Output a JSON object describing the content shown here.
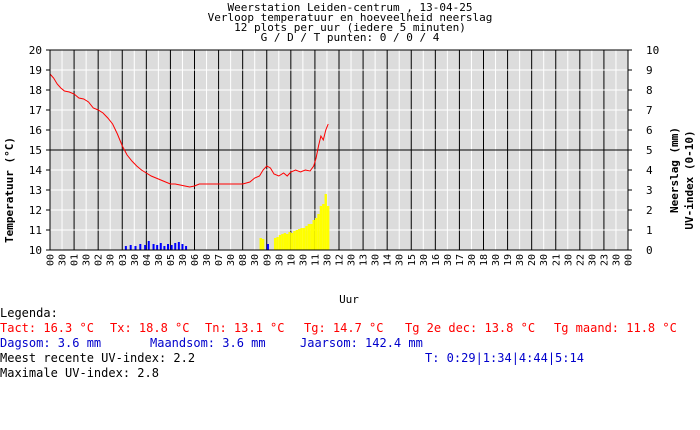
{
  "chart_data": {
    "type": "line",
    "title_lines": [
      "Weerstation Leiden-centrum , 13-04-25",
      "Verloop temperatuur en hoeveelheid neerslag",
      "12 plots per uur (iedere 5 minuten)",
      "G / D / T punten: 0 / 0 / 4"
    ],
    "xlabel": "Uur",
    "ylabel_left": "Temperatuur (°C)",
    "ylabel_right_1": "Neerslag (mm)",
    "ylabel_right_2": "UV-index (0-10)",
    "xlim": [
      0,
      24
    ],
    "ylim_left": [
      10,
      20
    ],
    "ylim_right": [
      0,
      10
    ],
    "left_ticks": [
      "10",
      "11",
      "12",
      "13",
      "14",
      "15",
      "16",
      "17",
      "18",
      "19",
      "20"
    ],
    "right_ticks": [
      "0",
      "1",
      "2",
      "3",
      "4",
      "5",
      "6",
      "7",
      "8",
      "9",
      "10"
    ],
    "hour_ticks": [
      "00",
      "01",
      "02",
      "03",
      "04",
      "05",
      "06",
      "07",
      "08",
      "09",
      "10",
      "11",
      "12",
      "13",
      "14",
      "15",
      "16",
      "17",
      "18",
      "19",
      "20",
      "21",
      "22",
      "23",
      "00"
    ],
    "half_hour_tick": "30",
    "grid": true,
    "colors": {
      "temperature": "#ff0000",
      "precipitation": "#0000ff",
      "uv": "#ffff00",
      "background": "#dcdcdc",
      "grid": "#000000"
    },
    "series": [
      {
        "name": "Temperatuur",
        "color": "#ff0000",
        "points": [
          [
            0.0,
            18.8
          ],
          [
            0.15,
            18.6
          ],
          [
            0.3,
            18.3
          ],
          [
            0.45,
            18.1
          ],
          [
            0.6,
            17.95
          ],
          [
            0.8,
            17.9
          ],
          [
            1.0,
            17.8
          ],
          [
            1.2,
            17.6
          ],
          [
            1.4,
            17.55
          ],
          [
            1.6,
            17.4
          ],
          [
            1.8,
            17.1
          ],
          [
            2.0,
            17.0
          ],
          [
            2.2,
            16.85
          ],
          [
            2.4,
            16.6
          ],
          [
            2.6,
            16.3
          ],
          [
            2.8,
            15.8
          ],
          [
            3.0,
            15.2
          ],
          [
            3.2,
            14.75
          ],
          [
            3.4,
            14.45
          ],
          [
            3.6,
            14.2
          ],
          [
            3.8,
            14.0
          ],
          [
            4.0,
            13.85
          ],
          [
            4.2,
            13.7
          ],
          [
            4.4,
            13.6
          ],
          [
            4.6,
            13.5
          ],
          [
            4.8,
            13.4
          ],
          [
            5.0,
            13.3
          ],
          [
            5.2,
            13.3
          ],
          [
            5.4,
            13.25
          ],
          [
            5.6,
            13.2
          ],
          [
            5.8,
            13.15
          ],
          [
            6.0,
            13.2
          ],
          [
            6.2,
            13.3
          ],
          [
            6.5,
            13.3
          ],
          [
            7.0,
            13.3
          ],
          [
            7.5,
            13.3
          ],
          [
            8.0,
            13.3
          ],
          [
            8.3,
            13.4
          ],
          [
            8.5,
            13.6
          ],
          [
            8.7,
            13.7
          ],
          [
            8.85,
            14.0
          ],
          [
            9.0,
            14.2
          ],
          [
            9.15,
            14.1
          ],
          [
            9.3,
            13.8
          ],
          [
            9.5,
            13.7
          ],
          [
            9.7,
            13.85
          ],
          [
            9.85,
            13.7
          ],
          [
            10.0,
            13.9
          ],
          [
            10.2,
            14.0
          ],
          [
            10.4,
            13.9
          ],
          [
            10.6,
            14.0
          ],
          [
            10.8,
            13.95
          ],
          [
            10.95,
            14.2
          ],
          [
            11.05,
            14.6
          ],
          [
            11.15,
            15.2
          ],
          [
            11.25,
            15.7
          ],
          [
            11.35,
            15.5
          ],
          [
            11.45,
            16.0
          ],
          [
            11.55,
            16.3
          ]
        ]
      },
      {
        "name": "Neerslag",
        "color": "#0000ff",
        "bars": [
          [
            3.15,
            0.2
          ],
          [
            3.35,
            0.25
          ],
          [
            3.55,
            0.2
          ],
          [
            3.75,
            0.3
          ],
          [
            3.95,
            0.25
          ],
          [
            4.1,
            0.45
          ],
          [
            4.3,
            0.3
          ],
          [
            4.45,
            0.25
          ],
          [
            4.6,
            0.35
          ],
          [
            4.75,
            0.2
          ],
          [
            4.9,
            0.3
          ],
          [
            5.05,
            0.25
          ],
          [
            5.2,
            0.35
          ],
          [
            5.35,
            0.4
          ],
          [
            5.5,
            0.3
          ],
          [
            5.65,
            0.2
          ],
          [
            9.05,
            0.3
          ]
        ]
      },
      {
        "name": "UV-index",
        "color": "#ffff00",
        "bars": [
          [
            8.75,
            0.6
          ],
          [
            8.85,
            0.55
          ],
          [
            9.35,
            0.6
          ],
          [
            9.45,
            0.65
          ],
          [
            9.55,
            0.75
          ],
          [
            9.65,
            0.8
          ],
          [
            9.75,
            0.85
          ],
          [
            9.85,
            0.8
          ],
          [
            9.95,
            0.9
          ],
          [
            10.05,
            0.85
          ],
          [
            10.15,
            0.95
          ],
          [
            10.25,
            1.0
          ],
          [
            10.35,
            1.05
          ],
          [
            10.45,
            1.1
          ],
          [
            10.55,
            1.1
          ],
          [
            10.65,
            1.2
          ],
          [
            10.75,
            1.3
          ],
          [
            10.85,
            1.3
          ],
          [
            10.95,
            1.5
          ],
          [
            11.05,
            1.6
          ],
          [
            11.15,
            1.8
          ],
          [
            11.25,
            2.2
          ],
          [
            11.35,
            2.3
          ],
          [
            11.45,
            2.8
          ],
          [
            11.55,
            2.2
          ]
        ]
      }
    ]
  },
  "legend": {
    "heading": "Legenda:",
    "row1": [
      "Tact: 16.3 °C",
      "Tx: 18.8 °C",
      "Tn: 13.1 °C",
      "Tg: 14.7 °C",
      "Tg 2e dec: 13.8 °C",
      "Tg maand: 11.8 °C"
    ],
    "row2": [
      "Dagsom: 3.6 mm",
      "Maandsom: 3.6 mm",
      "Jaarsom: 142.4 mm"
    ],
    "uv_recent": "Meest recente UV-index: 2.2",
    "t_times": "T: 0:29|1:34|4:44|5:14",
    "uv_max": "Maximale UV-index: 2.8"
  }
}
